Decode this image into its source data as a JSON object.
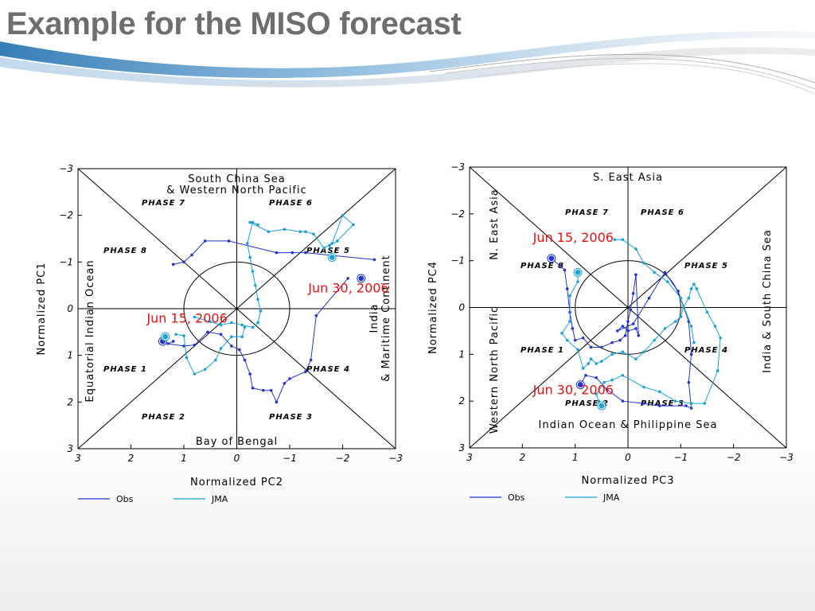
{
  "slide": {
    "title": "Example for the MISO forecast"
  },
  "colors": {
    "obs": "#2233d6",
    "jma": "#1aa1d8",
    "annotation": "#e8110f",
    "title": "#6e6e6e"
  },
  "legend": [
    {
      "name": "Obs",
      "color": "#2233d6"
    },
    {
      "name": "JMA",
      "color": "#1aa1d8"
    }
  ],
  "chart_data": [
    {
      "type": "scatter",
      "title": "",
      "xlabel": "Normalized PC2",
      "ylabel": "Normalized PC1",
      "xlim": [
        3,
        -3
      ],
      "ylim": [
        3,
        -3
      ],
      "x_ticks": [
        "3",
        "2",
        "1",
        "0",
        "−1",
        "−2",
        "−3"
      ],
      "y_ticks": [
        "−3",
        "−2",
        "−1",
        "0",
        "1",
        "2",
        "3"
      ],
      "circle_radius": 1,
      "regions": {
        "top": [
          "South China Sea",
          "& Western North Pacific"
        ],
        "bottom": [
          "Bay of Bengal"
        ],
        "left": [
          "Equatorial Indian Ocean"
        ],
        "right": [
          "India",
          "& Maritime Continent"
        ]
      },
      "phases": {
        "p1": "PHASE 1",
        "p2": "PHASE 2",
        "p3": "PHASE 3",
        "p4": "PHASE 4",
        "p5": "PHASE 5",
        "p6": "PHASE 6",
        "p7": "PHASE 7",
        "p8": "PHASE 8"
      },
      "annotations": [
        {
          "text": "Jun 15, 2006",
          "x": 1.7,
          "y": 0.3
        },
        {
          "text": "Jun 30, 2006",
          "x": -1.35,
          "y": -0.35
        }
      ],
      "series": [
        {
          "name": "Obs",
          "x": [
            1.2,
            1.3,
            1.0,
            0.8,
            0.55,
            0.3,
            0.1,
            -0.05,
            -0.15,
            -0.25,
            -0.3,
            -0.5,
            -0.65,
            -0.75,
            -0.9,
            -1.0,
            -1.3,
            -1.4,
            -1.5,
            -2.1
          ],
          "y": [
            0.7,
            0.75,
            0.8,
            0.78,
            0.5,
            0.55,
            0.8,
            0.88,
            1.1,
            1.4,
            1.7,
            1.75,
            1.75,
            2.0,
            1.6,
            1.5,
            1.35,
            1.1,
            0.15,
            -0.65
          ],
          "start": [
            1.4,
            0.7
          ],
          "end": [
            -2.35,
            -0.65
          ]
        },
        {
          "name": "Obs",
          "x": [
            1.2,
            1.0,
            0.85,
            0.6,
            0.15,
            -0.75,
            -1.05,
            -1.3,
            -2.6
          ],
          "y": [
            -0.95,
            -1.0,
            -1.15,
            -1.45,
            -1.45,
            -1.2,
            -1.2,
            -1.2,
            -1.05
          ],
          "start": null,
          "end": null
        },
        {
          "name": "JMA",
          "x": [
            1.15,
            1.0,
            0.95,
            0.8,
            0.6,
            0.4,
            0.3,
            0.1,
            -0.1,
            -0.15
          ],
          "y": [
            0.55,
            0.58,
            1.05,
            1.4,
            1.3,
            1.1,
            0.85,
            0.6,
            0.6,
            0.4
          ],
          "start": [
            1.35,
            0.6
          ],
          "end": null
        },
        {
          "name": "JMA",
          "x": [
            0.8,
            0.5,
            0.3,
            0.1,
            -0.1,
            -0.3,
            -0.4,
            -0.45,
            -0.4,
            -0.35,
            -0.3,
            -0.25,
            -0.2,
            -0.3,
            -0.4
          ],
          "y": [
            0.18,
            0.28,
            0.35,
            0.3,
            0.35,
            0.4,
            0.3,
            0.05,
            -0.2,
            -0.5,
            -0.8,
            -1.1,
            -1.4,
            -1.85,
            -1.8
          ],
          "start": null,
          "end": null
        },
        {
          "name": "JMA",
          "x": [
            -0.25,
            -0.6,
            -0.9,
            -1.2,
            -1.3,
            -1.45,
            -1.65,
            -1.8,
            -2.0,
            -2.2,
            -1.9,
            -1.75,
            -1.8
          ],
          "y": [
            -1.85,
            -1.65,
            -1.7,
            -1.65,
            -1.65,
            -1.6,
            -1.3,
            -1.4,
            -2.0,
            -1.8,
            -1.45,
            -1.35,
            -1.1
          ],
          "start": null,
          "end": [
            -1.8,
            -1.1
          ]
        }
      ]
    },
    {
      "type": "scatter",
      "title": "",
      "xlabel": "Normalized PC3",
      "ylabel": "Normalized PC4",
      "xlim": [
        3,
        -3
      ],
      "ylim": [
        3,
        -3
      ],
      "x_ticks": [
        "3",
        "2",
        "1",
        "0",
        "−1",
        "−2",
        "−3"
      ],
      "y_ticks": [
        "−3",
        "−2",
        "−1",
        "0",
        "1",
        "2",
        "3"
      ],
      "circle_radius": 1,
      "regions": {
        "top": [
          "S. East Asia"
        ],
        "bottom": [
          "Indian Ocean & Philippine Sea"
        ],
        "left_upper": [
          "N. East Asia"
        ],
        "left_lower": [
          "Western North Pacific"
        ],
        "right": [
          "India & South China Sea"
        ]
      },
      "phases": {
        "p1": "PHASE 1",
        "p2": "PHASE 2",
        "p3": "PHASE 3",
        "p4": "PHASE 4",
        "p5": "PHASE 5",
        "p6": "PHASE 6",
        "p7": "PHASE 7",
        "p8": "PHASE 8"
      },
      "annotations": [
        {
          "text": "Jun 15, 2006",
          "x": 1.8,
          "y": -1.4
        },
        {
          "text": "Jun 30, 2006",
          "x": 1.8,
          "y": 1.85
        }
      ],
      "series": [
        {
          "name": "Obs",
          "x": [
            1.45,
            1.2,
            1.15,
            1.1,
            1.05,
            1.0,
            0.85,
            0.7,
            0.5,
            0.3,
            0.15,
            0.05,
            0.0,
            -0.05,
            -0.1,
            -0.15,
            -0.2,
            -0.15,
            0.0,
            0.1,
            0.2,
            -0.1,
            -0.4,
            -0.7,
            -0.95,
            -1.15,
            -1.2,
            -1.15,
            -1.2,
            -1.1,
            -0.6,
            -0.3,
            0.1,
            0.4,
            0.6,
            0.8,
            0.9
          ],
          "y": [
            -1.05,
            -0.8,
            -0.4,
            0.1,
            0.45,
            0.7,
            0.65,
            0.85,
            0.85,
            0.75,
            0.7,
            0.6,
            0.3,
            0.05,
            -0.3,
            -0.7,
            0.6,
            0.45,
            0.5,
            0.4,
            0.5,
            0.35,
            -0.2,
            -0.75,
            -0.35,
            0.3,
            1.0,
            1.6,
            2.15,
            2.1,
            2.1,
            2.05,
            2.0,
            1.75,
            1.5,
            1.45,
            1.65
          ],
          "start": [
            1.45,
            -1.05
          ],
          "end": [
            0.9,
            1.65
          ]
        },
        {
          "name": "JMA",
          "x": [
            0.95,
            0.95,
            1.1,
            1.1,
            1.25,
            1.15,
            0.95,
            0.85,
            0.75,
            0.7,
            0.6,
            0.5,
            0.3,
            0.1,
            -0.15,
            -0.3,
            -0.5,
            -0.7,
            -0.9,
            -1.0,
            -1.05,
            -1.15,
            -1.2,
            -1.25,
            -1.3,
            -1.5,
            -1.65,
            -1.75,
            -1.7,
            -1.45,
            -1.2,
            -0.9,
            -0.6,
            -0.3,
            0.1,
            0.3,
            0.45,
            0.6,
            0.55,
            0.5
          ],
          "y": [
            -0.75,
            -0.55,
            -0.25,
            0.3,
            0.55,
            0.7,
            0.9,
            1.3,
            1.2,
            1.1,
            1.2,
            1.15,
            1.0,
            0.95,
            1.1,
            0.95,
            0.7,
            0.45,
            0.3,
            0.2,
            0.0,
            -0.2,
            -0.4,
            -0.5,
            -0.4,
            0.1,
            0.4,
            0.65,
            1.35,
            2.05,
            2.05,
            2.0,
            1.8,
            1.7,
            1.45,
            1.55,
            1.6,
            1.85,
            2.0,
            2.1
          ],
          "start": [
            0.95,
            -0.75
          ],
          "end": [
            0.5,
            2.1
          ]
        },
        {
          "name": "JMA",
          "x": [
            0.25,
            0.1,
            -0.15,
            -0.3,
            -0.5,
            -0.75,
            -1.0,
            -1.2,
            -1.25
          ],
          "y": [
            -1.45,
            -1.45,
            -1.25,
            -0.95,
            -0.75,
            -0.55,
            -0.2,
            0.4,
            0.75
          ],
          "start": null,
          "end": null
        }
      ]
    }
  ]
}
